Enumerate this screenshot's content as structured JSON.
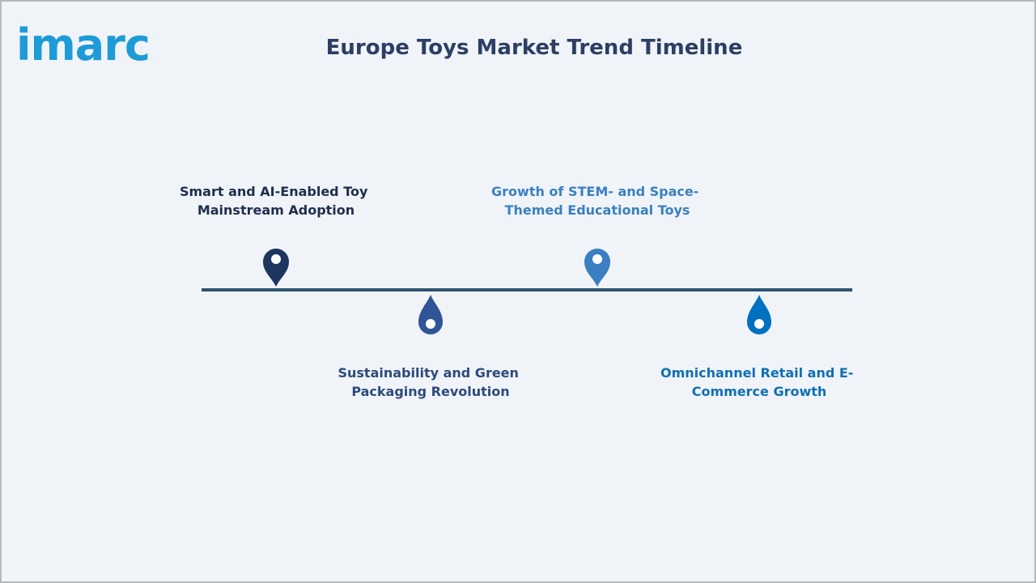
{
  "header": {
    "logo": "imarc",
    "title": "Europe Toys Market Trend Timeline"
  },
  "timeline": {
    "items": [
      {
        "lines": [
          "Smart and AI-Enabled Toy",
          "Mainstream Adoption"
        ]
      },
      {
        "lines": [
          "Sustainability and Green",
          "Packaging Revolution"
        ]
      },
      {
        "lines": [
          "Growth of STEM- and Space-",
          "Themed Educational Toys"
        ]
      },
      {
        "lines": [
          "Omnichannel Retail and E-",
          "Commerce Growth"
        ]
      }
    ]
  }
}
